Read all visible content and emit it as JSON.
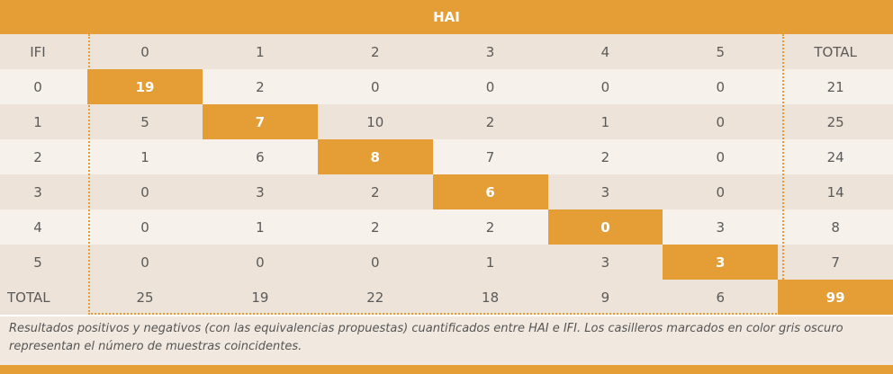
{
  "table": {
    "title": "HAI",
    "corner_label": "IFI",
    "columns": [
      "0",
      "1",
      "2",
      "3",
      "4",
      "5"
    ],
    "total_label": "TOTAL",
    "rows": [
      {
        "label": "0",
        "values": [
          "19",
          "2",
          "0",
          "0",
          "0",
          "0"
        ],
        "total": "21"
      },
      {
        "label": "1",
        "values": [
          "5",
          "7",
          "10",
          "2",
          "1",
          "0"
        ],
        "total": "25"
      },
      {
        "label": "2",
        "values": [
          "1",
          "6",
          "8",
          "7",
          "2",
          "0"
        ],
        "total": "24"
      },
      {
        "label": "3",
        "values": [
          "0",
          "3",
          "2",
          "6",
          "3",
          "0"
        ],
        "total": "14"
      },
      {
        "label": "4",
        "values": [
          "0",
          "1",
          "2",
          "2",
          "0",
          "3"
        ],
        "total": "8"
      },
      {
        "label": "5",
        "values": [
          "0",
          "0",
          "0",
          "1",
          "3",
          "3"
        ],
        "total": "7"
      }
    ],
    "totals_row": {
      "label": "TOTAL",
      "values": [
        "25",
        "19",
        "22",
        "18",
        "9",
        "6"
      ],
      "total": "99"
    }
  },
  "caption": "Resultados positivos y negativos (con las equivalencias propuestas) cuantificados entre HAI e IFI. Los casilleros marcados en color gris oscuro representan el número de muestras coincidentes.",
  "colors": {
    "accent": "#e59d35",
    "band_dark": "#ede3d8",
    "band_light": "#f6f1eb"
  }
}
